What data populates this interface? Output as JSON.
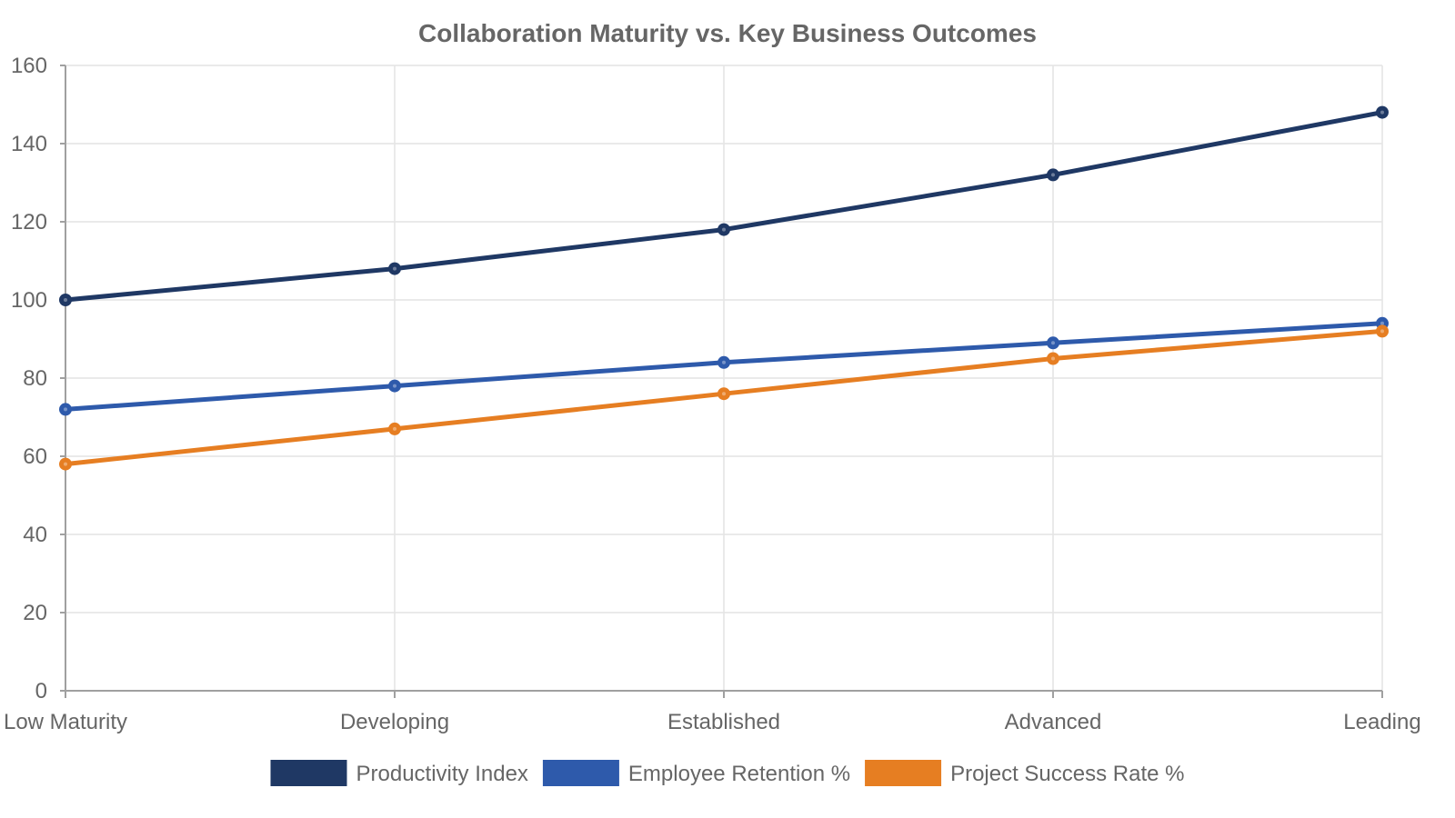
{
  "chart_data": {
    "type": "line",
    "title": "Collaboration Maturity vs. Key Business Outcomes",
    "xlabel": "",
    "ylabel": "",
    "categories": [
      "Low Maturity",
      "Developing",
      "Established",
      "Advanced",
      "Leading"
    ],
    "ylim": [
      0,
      160
    ],
    "yticks": [
      0,
      20,
      40,
      60,
      80,
      100,
      120,
      140,
      160
    ],
    "grid": true,
    "legend_position": "bottom",
    "series": [
      {
        "name": "Productivity Index",
        "color": "#1f3864",
        "values": [
          100,
          108,
          118,
          132,
          148
        ]
      },
      {
        "name": "Employee Retention %",
        "color": "#2e5aab",
        "values": [
          72,
          78,
          84,
          89,
          94
        ]
      },
      {
        "name": "Project Success Rate %",
        "color": "#e67e22",
        "values": [
          58,
          67,
          76,
          85,
          92
        ]
      }
    ]
  }
}
